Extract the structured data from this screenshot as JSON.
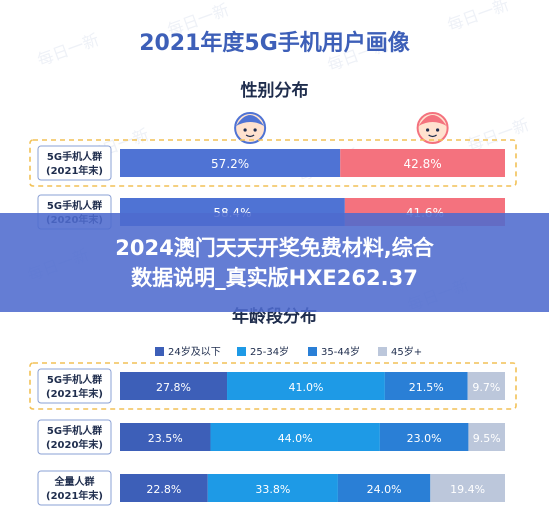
{
  "title": "2021年度5G手机用户画像",
  "watermark": "每日一新",
  "overlay": {
    "line1": "2024澳门天天开奖免费材料,综合",
    "line2": "数据说明_真实版HXE262.37"
  },
  "colors": {
    "title": "#3d5fb8",
    "male": "#4f73d4",
    "female": "#f4727e",
    "age_24_below": "#3d5fb8",
    "age_25_34": "#1e9ae6",
    "age_35_44": "#2a7fd6",
    "age_45_plus": "#bcc7db",
    "dash_border": "#f2c156",
    "group_label_border": "#8aa0d4"
  },
  "chart_data": [
    {
      "type": "bar",
      "stacked": true,
      "orientation": "horizontal",
      "title": "性别分布",
      "icons": [
        "male-avatar-icon",
        "female-avatar-icon"
      ],
      "categories": [
        "5G手机人群\n(2021年末)",
        "5G手机人群\n(2020年末)"
      ],
      "series": [
        {
          "values": [
            57.2,
            58.4
          ]
        },
        {
          "values": [
            42.8,
            41.6
          ]
        }
      ],
      "labels": [
        [
          "57.2%",
          "42.8%"
        ],
        [
          "58.4%",
          "41.6%"
        ]
      ],
      "xlim": [
        0,
        100
      ],
      "highlighted_category": "5G手机人群\n(2021年末)"
    },
    {
      "type": "bar",
      "stacked": true,
      "orientation": "horizontal",
      "title": "年龄段分布",
      "legend": "top",
      "categories": [
        "5G手机人群\n(2021年末)",
        "5G手机人群\n(2020年末)",
        "全量人群\n(2021年末)"
      ],
      "series": [
        {
          "name": "24岁及以下",
          "values": [
            27.8,
            23.5,
            22.8
          ]
        },
        {
          "name": "25-34岁",
          "values": [
            41.0,
            44.0,
            33.8
          ]
        },
        {
          "name": "35-44岁",
          "values": [
            21.5,
            23.0,
            24.0
          ]
        },
        {
          "name": "45岁+",
          "values": [
            9.7,
            9.5,
            19.4
          ]
        }
      ],
      "xlim": [
        0,
        100
      ],
      "highlighted_category": "5G手机人群\n(2021年末)"
    }
  ]
}
